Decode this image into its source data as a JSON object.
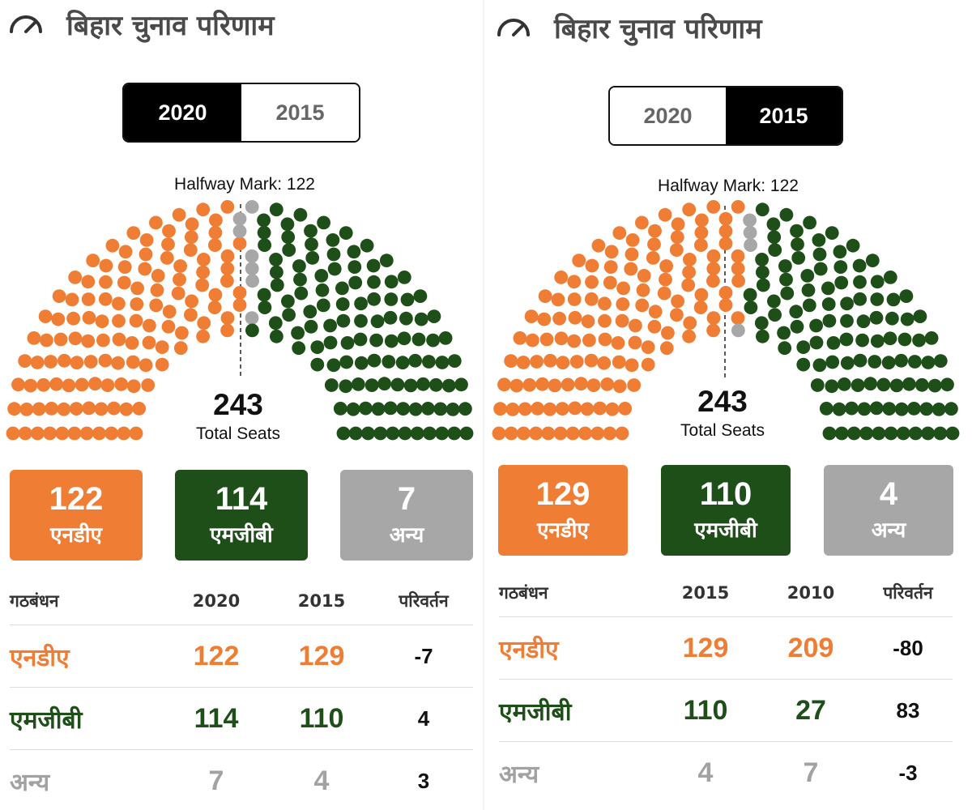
{
  "colors": {
    "nda": "#f07d34",
    "mgb": "#1f4f19",
    "others": "#a7a7a7"
  },
  "panels": [
    {
      "title": "बिहार चुनाव परिणाम",
      "icon": "speedometer-icon",
      "toggle": {
        "options": [
          "2020",
          "2015"
        ],
        "selected": "2020"
      },
      "halfway_label": "Halfway Mark: 122",
      "total_seats": "243",
      "total_label": "Total Seats",
      "seats": {
        "nda": 122,
        "others": 7,
        "mgb": 114
      },
      "tiles": [
        {
          "value": "122",
          "label": "एनडीए"
        },
        {
          "value": "114",
          "label": "एमजीबी"
        },
        {
          "value": "7",
          "label": "अन्य"
        }
      ],
      "table": {
        "headers": [
          "गठबंधन",
          "2020",
          "2015",
          "परिवर्तन"
        ],
        "rows": [
          {
            "party": "एनडीए",
            "a": "122",
            "b": "129",
            "change": "-7"
          },
          {
            "party": "एमजीबी",
            "a": "114",
            "b": "110",
            "change": "4"
          },
          {
            "party": "अन्य",
            "a": "7",
            "b": "4",
            "change": "3"
          }
        ]
      }
    },
    {
      "title": "बिहार चुनाव परिणाम",
      "icon": "speedometer-icon",
      "toggle": {
        "options": [
          "2020",
          "2015"
        ],
        "selected": "2015"
      },
      "halfway_label": "Halfway Mark: 122",
      "total_seats": "243",
      "total_label": "Total Seats",
      "seats": {
        "nda": 129,
        "others": 4,
        "mgb": 110
      },
      "tiles": [
        {
          "value": "129",
          "label": "एनडीए"
        },
        {
          "value": "110",
          "label": "एमजीबी"
        },
        {
          "value": "4",
          "label": "अन्य"
        }
      ],
      "table": {
        "headers": [
          "गठबंधन",
          "2015",
          "2010",
          "परिवर्तन"
        ],
        "rows": [
          {
            "party": "एनडीए",
            "a": "129",
            "b": "209",
            "change": "-80"
          },
          {
            "party": "एमजीबी",
            "a": "110",
            "b": "27",
            "change": "83"
          },
          {
            "party": "अन्य",
            "a": "4",
            "b": "7",
            "change": "-3"
          }
        ]
      }
    }
  ]
}
